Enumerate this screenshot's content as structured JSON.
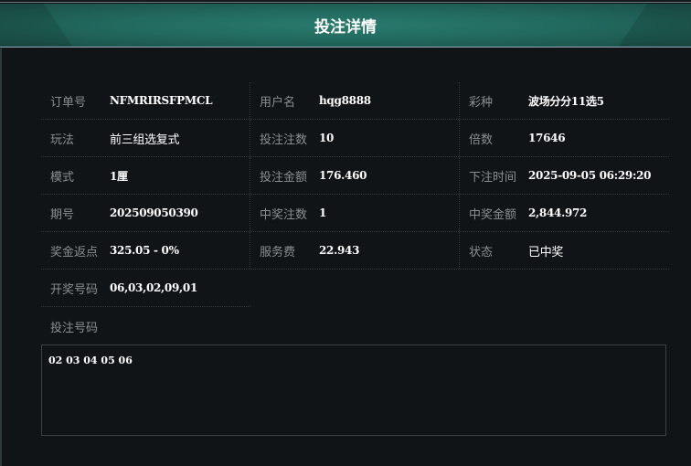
{
  "title": "投注详情",
  "rows": [
    [
      {
        "label": "订单号",
        "value": "NFMRIRSFPMCL"
      },
      {
        "label": "用户名",
        "value": "hqg8888"
      },
      {
        "label": "彩种",
        "value": "波场分分11选5"
      }
    ],
    [
      {
        "label": "玩法",
        "value": "前三组选复式"
      },
      {
        "label": "投注注数",
        "value": "10"
      },
      {
        "label": "倍数",
        "value": "17646"
      }
    ],
    [
      {
        "label": "模式",
        "value": "1厘"
      },
      {
        "label": "投注金额",
        "value": "176.460"
      },
      {
        "label": "下注时间",
        "value": "2025-09-05 06:29:20"
      }
    ],
    [
      {
        "label": "期号",
        "value": "202509050390"
      },
      {
        "label": "中奖注数",
        "value": "1"
      },
      {
        "label": "中奖金额",
        "value": "2,844.972"
      }
    ],
    [
      {
        "label": "奖金返点",
        "value": "325.05 - 0%"
      },
      {
        "label": "服务费",
        "value": "22.943"
      },
      {
        "label": "状态",
        "value": "已中奖"
      }
    ],
    [
      {
        "label": "开奖号码",
        "value": "06,03,02,09,01"
      }
    ]
  ],
  "bet_numbers_label": "投注号码",
  "bet_numbers": "02 03 04 05 06"
}
